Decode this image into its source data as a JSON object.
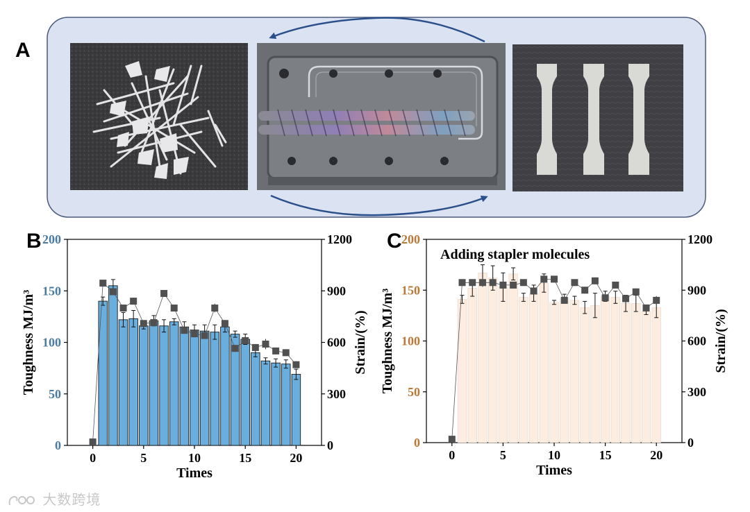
{
  "panels": {
    "a": {
      "letter": "A"
    },
    "b": {
      "letter": "B"
    },
    "c": {
      "letter": "C"
    }
  },
  "colors": {
    "frame_fill": "#dbe3f3",
    "frame_stroke": "#4a5a7a",
    "arrow": "#2a4f8a",
    "bar_b": "#6aaede",
    "bar_c": "#fdece0",
    "bar_stroke": "#1a1a1a",
    "square": "#505050",
    "left_axis_b": "#4a7aa0",
    "left_axis_c": "#b87838"
  },
  "photos": [
    {
      "name": "shredded-plastic-photo"
    },
    {
      "name": "twin-screw-extruder-photo"
    },
    {
      "name": "dogbone-specimens-photo"
    }
  ],
  "watermark": "大数跨境",
  "chart_data": [
    {
      "type": "bar",
      "title": "",
      "xlabel": "Times",
      "ylabel": "Toughness MJ/m³",
      "y2label": "Strain/(%)",
      "xlim": [
        -2.5,
        22.5
      ],
      "ylim": [
        0,
        200
      ],
      "y2lim": [
        0,
        1200
      ],
      "xticks": [
        0,
        5,
        10,
        15,
        20
      ],
      "yticks": [
        0,
        50,
        100,
        150,
        200
      ],
      "y2ticks": [
        0,
        300,
        600,
        900,
        1200
      ],
      "x": [
        0,
        1,
        2,
        3,
        4,
        5,
        6,
        7,
        8,
        9,
        10,
        11,
        12,
        13,
        14,
        15,
        16,
        17,
        18,
        19,
        20
      ],
      "series": [
        {
          "name": "",
          "kind": "bar",
          "axis": "left",
          "values": [
            0,
            140,
            155,
            122,
            123,
            116,
            121,
            116,
            120,
            115,
            112,
            111,
            110,
            115,
            108,
            103,
            90,
            82,
            80,
            79,
            69
          ],
          "errors": [
            0,
            4,
            6,
            7,
            8,
            3,
            5,
            6,
            3,
            5,
            5,
            6,
            7,
            5,
            3,
            5,
            4,
            3,
            4,
            4,
            5
          ]
        },
        {
          "name": "",
          "kind": "scatter-line",
          "axis": "right",
          "values": [
            20,
            945,
            895,
            800,
            840,
            710,
            715,
            885,
            800,
            670,
            650,
            640,
            800,
            710,
            565,
            610,
            570,
            590,
            550,
            540,
            470
          ],
          "errors": [
            0,
            15,
            20,
            20,
            20,
            15,
            15,
            20,
            20,
            20,
            20,
            20,
            25,
            20,
            20,
            20,
            20,
            30,
            20,
            20,
            20
          ]
        }
      ]
    },
    {
      "type": "bar",
      "title": "",
      "annotation": "Adding stapler molecules",
      "xlabel": "Times",
      "ylabel": "Toughness MJ/m³",
      "y2label": "Strain/(%)",
      "xlim": [
        -2.5,
        22.5
      ],
      "ylim": [
        0,
        200
      ],
      "y2lim": [
        0,
        1200
      ],
      "xticks": [
        0,
        5,
        10,
        15,
        20
      ],
      "yticks": [
        0,
        50,
        100,
        150,
        200
      ],
      "y2ticks": [
        0,
        300,
        600,
        900,
        1200
      ],
      "x": [
        0,
        1,
        2,
        3,
        4,
        5,
        6,
        7,
        8,
        9,
        10,
        11,
        12,
        13,
        14,
        15,
        16,
        17,
        18,
        19,
        20
      ],
      "series": [
        {
          "name": "",
          "kind": "bar",
          "axis": "left",
          "values": [
            0,
            141,
            152,
            167,
            162,
            153,
            166,
            143,
            147,
            157,
            138,
            142,
            140,
            133,
            135,
            144,
            143,
            137,
            137,
            129,
            133
          ],
          "errors": [
            0,
            4,
            8,
            8,
            12,
            14,
            6,
            4,
            8,
            9,
            2,
            4,
            4,
            6,
            12,
            5,
            6,
            8,
            8,
            3,
            10
          ]
        },
        {
          "name": "",
          "kind": "scatter-line",
          "axis": "right",
          "values": [
            20,
            945,
            945,
            945,
            945,
            930,
            930,
            945,
            895,
            965,
            965,
            840,
            945,
            900,
            955,
            855,
            930,
            850,
            890,
            795,
            840
          ],
          "errors": [
            0,
            15,
            15,
            25,
            30,
            15,
            15,
            15,
            20,
            20,
            20,
            20,
            20,
            20,
            20,
            20,
            20,
            20,
            20,
            20,
            25
          ]
        }
      ]
    }
  ]
}
